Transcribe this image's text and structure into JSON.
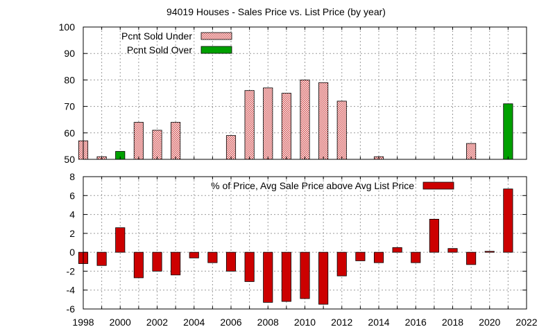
{
  "title": "94019 Houses - Sales Price vs. List Price (by year)",
  "colors": {
    "under": "#ffb6b6",
    "under_stroke": "#b00000",
    "over": "#00a000",
    "pct": "#cc0000",
    "grid": "#9a9a9a"
  },
  "chart_data": [
    {
      "type": "bar",
      "x": [
        1998,
        1999,
        2000,
        2001,
        2002,
        2003,
        2004,
        2005,
        2006,
        2007,
        2008,
        2009,
        2010,
        2011,
        2012,
        2013,
        2014,
        2015,
        2016,
        2017,
        2018,
        2019,
        2020,
        2021
      ],
      "series": [
        {
          "name": "Pcnt Sold Under",
          "style": "checker",
          "values": [
            57,
            51,
            null,
            64,
            61,
            64,
            null,
            null,
            59,
            76,
            77,
            75,
            80,
            79,
            72,
            null,
            51,
            null,
            null,
            null,
            null,
            56,
            null,
            null
          ]
        },
        {
          "name": "Pcnt Sold Over",
          "style": "solid",
          "values": [
            null,
            null,
            53,
            null,
            null,
            null,
            null,
            null,
            null,
            null,
            null,
            null,
            null,
            null,
            null,
            null,
            null,
            null,
            null,
            null,
            null,
            null,
            null,
            71
          ]
        }
      ],
      "xlim": [
        1998,
        2022
      ],
      "ylim": [
        50,
        100
      ],
      "yticks": [
        50,
        60,
        70,
        80,
        90,
        100
      ],
      "grid": true,
      "legend_position": "top-left"
    },
    {
      "type": "bar",
      "x": [
        1998,
        1999,
        2000,
        2001,
        2002,
        2003,
        2004,
        2005,
        2006,
        2007,
        2008,
        2009,
        2010,
        2011,
        2012,
        2013,
        2014,
        2015,
        2016,
        2017,
        2018,
        2019,
        2020,
        2021
      ],
      "series": [
        {
          "name": "% of Price, Avg Sale Price above Avg List Price",
          "style": "solid",
          "values": [
            -1.2,
            -1.4,
            2.6,
            -2.7,
            -2.0,
            -2.4,
            -0.6,
            -1.1,
            -2.0,
            -3.1,
            -5.3,
            -5.2,
            -4.9,
            -5.5,
            -2.5,
            -0.9,
            -1.1,
            0.5,
            -1.1,
            3.5,
            0.4,
            -1.3,
            0.1,
            6.7
          ]
        }
      ],
      "xlim": [
        1998,
        2022
      ],
      "xticks": [
        1998,
        2000,
        2002,
        2004,
        2006,
        2008,
        2010,
        2012,
        2014,
        2016,
        2018,
        2020,
        2022
      ],
      "ylim": [
        -6,
        8
      ],
      "yticks": [
        -6,
        -4,
        -2,
        0,
        2,
        4,
        6,
        8
      ],
      "grid": true,
      "legend_position": "top-right"
    }
  ]
}
